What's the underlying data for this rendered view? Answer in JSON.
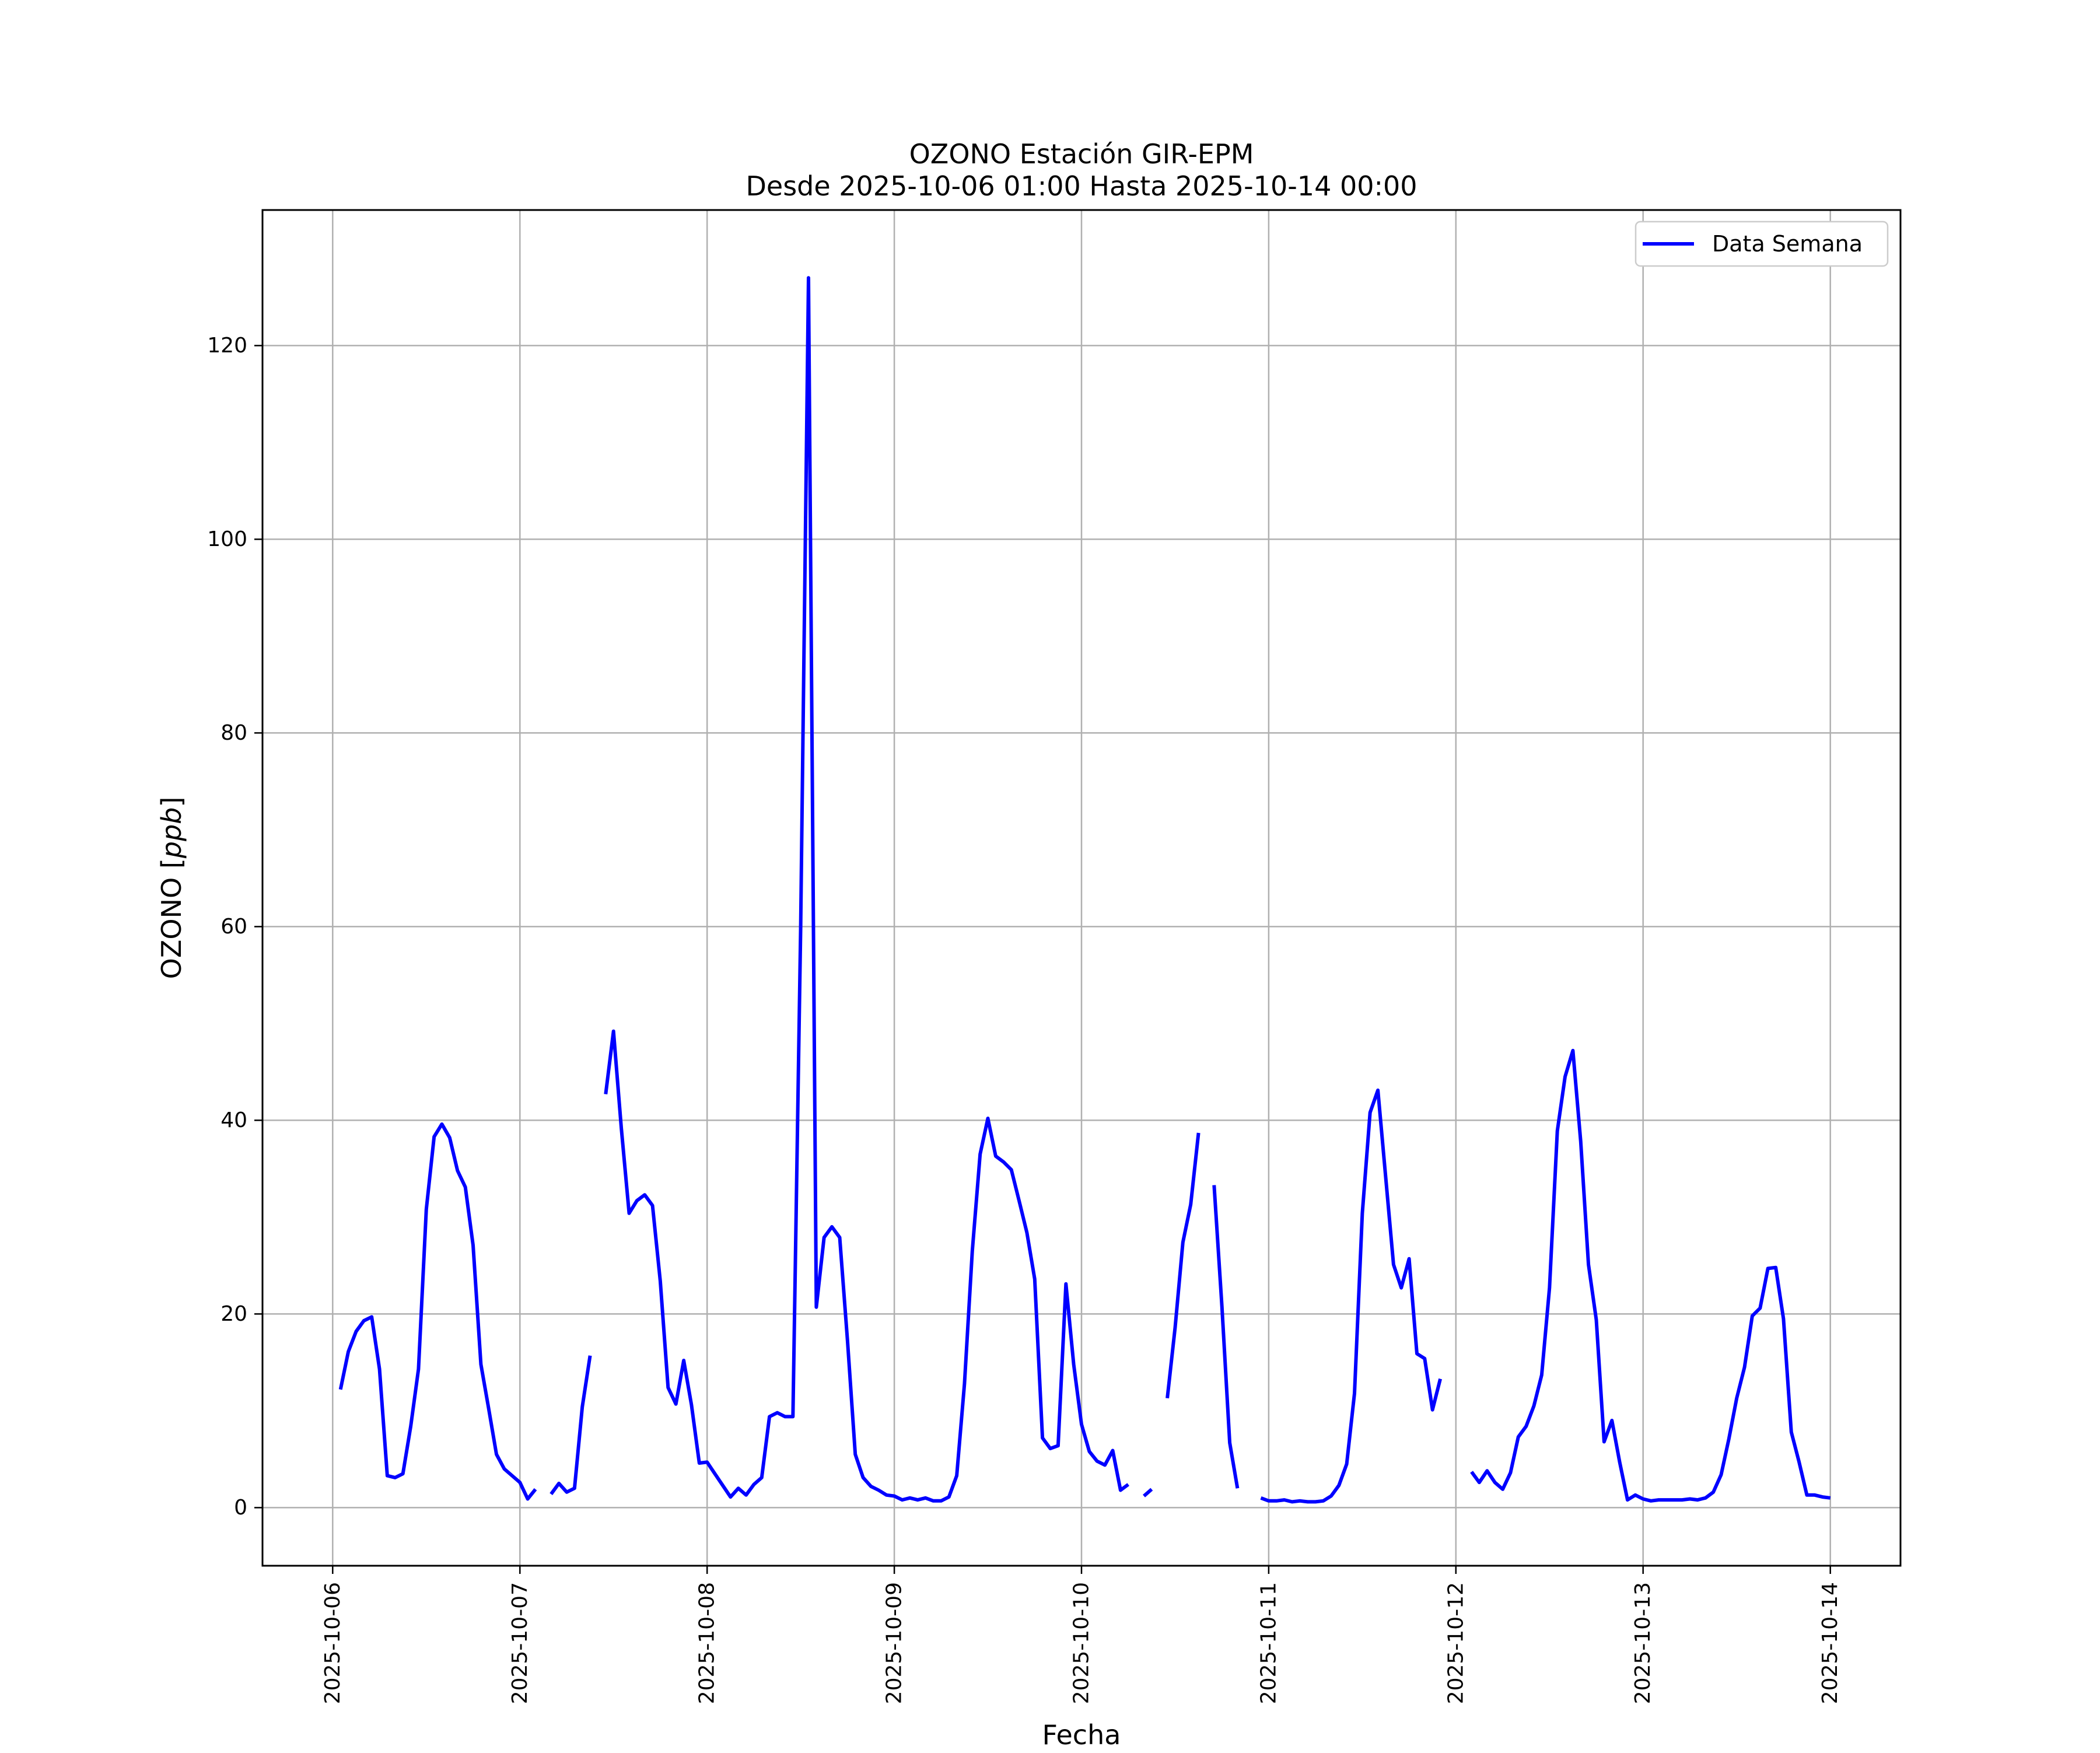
{
  "chart_data": {
    "type": "line",
    "title": "OZONO Estación GIR-EPM",
    "subtitle": "Desde 2025-10-06 01:00 Hasta 2025-10-14 00:00",
    "xlabel": "Fecha",
    "ylabel": "OZONO [ppb]",
    "ylabel_plain": "OZONO [",
    "ylabel_italic": "ppb",
    "ylabel_close": "]",
    "xlim": [
      "2025-10-05 15:00",
      "2025-10-14 09:00"
    ],
    "ylim": [
      -6,
      134
    ],
    "yticks": [
      0,
      20,
      40,
      60,
      80,
      100,
      120
    ],
    "xticks": [
      "2025-10-06",
      "2025-10-07",
      "2025-10-08",
      "2025-10-09",
      "2025-10-10",
      "2025-10-11",
      "2025-10-12",
      "2025-10-13",
      "2025-10-14"
    ],
    "grid": true,
    "legend_position": "top-right",
    "color": "#0000ff",
    "series": [
      {
        "name": "Data Semana",
        "segments": [
          [
            [
              "2025-10-06 01:00",
              12.2
            ],
            [
              "2025-10-06 02:00",
              16.1
            ],
            [
              "2025-10-06 03:00",
              18.2
            ],
            [
              "2025-10-06 04:00",
              19.3
            ],
            [
              "2025-10-06 05:00",
              19.7
            ],
            [
              "2025-10-06 06:00",
              14.3
            ],
            [
              "2025-10-06 07:00",
              3.3
            ],
            [
              "2025-10-06 08:00",
              3.1
            ],
            [
              "2025-10-06 09:00",
              3.5
            ],
            [
              "2025-10-06 10:00",
              8.4
            ],
            [
              "2025-10-06 11:00",
              14.3
            ],
            [
              "2025-10-06 12:00",
              30.8
            ],
            [
              "2025-10-06 13:00",
              38.3
            ],
            [
              "2025-10-06 14:00",
              39.6
            ],
            [
              "2025-10-06 15:00",
              38.2
            ],
            [
              "2025-10-06 16:00",
              34.8
            ],
            [
              "2025-10-06 17:00",
              33.1
            ],
            [
              "2025-10-06 18:00",
              27.1
            ],
            [
              "2025-10-06 19:00",
              14.8
            ],
            [
              "2025-10-06 20:00",
              10.2
            ],
            [
              "2025-10-06 21:00",
              5.5
            ],
            [
              "2025-10-06 22:00",
              4.0
            ],
            [
              "2025-10-06 23:00",
              3.3
            ],
            [
              "2025-10-07 00:00",
              2.6
            ],
            [
              "2025-10-07 01:00",
              0.9
            ],
            [
              "2025-10-07 02:00",
              1.9
            ]
          ],
          [
            [
              "2025-10-07 04:00",
              1.4
            ],
            [
              "2025-10-07 05:00",
              2.5
            ],
            [
              "2025-10-07 06:00",
              1.6
            ],
            [
              "2025-10-07 07:00",
              2.0
            ],
            [
              "2025-10-07 08:00",
              10.4
            ],
            [
              "2025-10-07 09:00",
              15.7
            ]
          ],
          [
            [
              "2025-10-07 11:00",
              42.7
            ],
            [
              "2025-10-07 12:00",
              49.2
            ],
            [
              "2025-10-07 13:00",
              39.2
            ],
            [
              "2025-10-07 14:00",
              30.4
            ],
            [
              "2025-10-07 15:00",
              31.7
            ],
            [
              "2025-10-07 16:00",
              32.3
            ],
            [
              "2025-10-07 17:00",
              31.2
            ],
            [
              "2025-10-07 18:00",
              23.4
            ],
            [
              "2025-10-07 19:00",
              12.4
            ],
            [
              "2025-10-07 20:00",
              10.7
            ],
            [
              "2025-10-07 21:00",
              15.2
            ],
            [
              "2025-10-07 22:00",
              10.6
            ],
            [
              "2025-10-07 23:00",
              4.6
            ],
            [
              "2025-10-08 00:00",
              4.7
            ],
            [
              "2025-10-08 01:00",
              3.5
            ],
            [
              "2025-10-08 02:00",
              2.3
            ],
            [
              "2025-10-08 03:00",
              1.1
            ],
            [
              "2025-10-08 04:00",
              2.0
            ],
            [
              "2025-10-08 05:00",
              1.3
            ],
            [
              "2025-10-08 06:00",
              2.4
            ],
            [
              "2025-10-08 07:00",
              3.1
            ],
            [
              "2025-10-08 08:00",
              9.4
            ],
            [
              "2025-10-08 09:00",
              9.8
            ],
            [
              "2025-10-08 10:00",
              9.4
            ],
            [
              "2025-10-08 11:00",
              9.4
            ],
            [
              "2025-10-08 12:00",
              60.0
            ],
            [
              "2025-10-08 13:00",
              127.0
            ],
            [
              "2025-10-08 14:00",
              20.7
            ],
            [
              "2025-10-08 15:00",
              27.9
            ],
            [
              "2025-10-08 16:00",
              29.0
            ],
            [
              "2025-10-08 17:00",
              27.9
            ],
            [
              "2025-10-08 18:00",
              17.2
            ],
            [
              "2025-10-08 19:00",
              5.5
            ],
            [
              "2025-10-08 20:00",
              3.1
            ],
            [
              "2025-10-08 21:00",
              2.2
            ],
            [
              "2025-10-08 22:00",
              1.8
            ],
            [
              "2025-10-08 23:00",
              1.3
            ],
            [
              "2025-10-09 00:00",
              1.2
            ],
            [
              "2025-10-09 01:00",
              0.8
            ],
            [
              "2025-10-09 02:00",
              1.0
            ],
            [
              "2025-10-09 03:00",
              0.8
            ],
            [
              "2025-10-09 04:00",
              1.0
            ],
            [
              "2025-10-09 05:00",
              0.7
            ],
            [
              "2025-10-09 06:00",
              0.7
            ],
            [
              "2025-10-09 07:00",
              1.1
            ],
            [
              "2025-10-09 08:00",
              3.3
            ],
            [
              "2025-10-09 09:00",
              12.8
            ],
            [
              "2025-10-09 10:00",
              26.5
            ],
            [
              "2025-10-09 11:00",
              36.5
            ],
            [
              "2025-10-09 12:00",
              40.2
            ],
            [
              "2025-10-09 13:00",
              36.3
            ],
            [
              "2025-10-09 14:00",
              35.7
            ],
            [
              "2025-10-09 15:00",
              34.9
            ],
            [
              "2025-10-09 16:00",
              31.7
            ],
            [
              "2025-10-09 17:00",
              28.4
            ],
            [
              "2025-10-09 18:00",
              23.6
            ],
            [
              "2025-10-09 19:00",
              7.2
            ],
            [
              "2025-10-09 20:00",
              6.1
            ],
            [
              "2025-10-09 21:00",
              6.4
            ],
            [
              "2025-10-09 22:00",
              23.1
            ],
            [
              "2025-10-09 23:00",
              14.8
            ],
            [
              "2025-10-10 00:00",
              8.6
            ],
            [
              "2025-10-10 01:00",
              5.8
            ],
            [
              "2025-10-10 02:00",
              4.8
            ],
            [
              "2025-10-10 03:00",
              4.4
            ],
            [
              "2025-10-10 04:00",
              5.9
            ],
            [
              "2025-10-10 05:00",
              1.8
            ],
            [
              "2025-10-10 06:00",
              2.4
            ]
          ],
          [
            [
              "2025-10-10 08:00",
              1.2
            ],
            [
              "2025-10-10 09:00",
              1.9
            ]
          ],
          [
            [
              "2025-10-10 11:00",
              11.3
            ],
            [
              "2025-10-10 12:00",
              18.6
            ],
            [
              "2025-10-10 13:00",
              27.4
            ],
            [
              "2025-10-10 14:00",
              31.3
            ],
            [
              "2025-10-10 15:00",
              38.7
            ]
          ],
          [
            [
              "2025-10-10 17:00",
              33.3
            ],
            [
              "2025-10-10 18:00",
              20.8
            ],
            [
              "2025-10-10 19:00",
              6.7
            ],
            [
              "2025-10-10 20:00",
              2.0
            ]
          ],
          [
            [
              "2025-10-10 23:00",
              1.0
            ],
            [
              "2025-10-11 00:00",
              0.7
            ],
            [
              "2025-10-11 01:00",
              0.7
            ],
            [
              "2025-10-11 02:00",
              0.8
            ],
            [
              "2025-10-11 03:00",
              0.6
            ],
            [
              "2025-10-11 04:00",
              0.7
            ],
            [
              "2025-10-11 05:00",
              0.6
            ],
            [
              "2025-10-11 06:00",
              0.6
            ],
            [
              "2025-10-11 07:00",
              0.7
            ],
            [
              "2025-10-11 08:00",
              1.2
            ],
            [
              "2025-10-11 09:00",
              2.3
            ],
            [
              "2025-10-11 10:00",
              4.5
            ],
            [
              "2025-10-11 11:00",
              11.8
            ],
            [
              "2025-10-11 12:00",
              30.4
            ],
            [
              "2025-10-11 13:00",
              40.8
            ],
            [
              "2025-10-11 14:00",
              43.1
            ],
            [
              "2025-10-11 15:00",
              34.1
            ],
            [
              "2025-10-11 16:00",
              25.1
            ],
            [
              "2025-10-11 17:00",
              22.7
            ],
            [
              "2025-10-11 18:00",
              25.7
            ],
            [
              "2025-10-11 19:00",
              15.9
            ],
            [
              "2025-10-11 20:00",
              15.4
            ],
            [
              "2025-10-11 21:00",
              10.1
            ],
            [
              "2025-10-11 22:00",
              13.3
            ]
          ],
          [
            [
              "2025-10-12 02:00",
              3.7
            ],
            [
              "2025-10-12 03:00",
              2.6
            ],
            [
              "2025-10-12 04:00",
              3.8
            ],
            [
              "2025-10-12 05:00",
              2.6
            ],
            [
              "2025-10-12 06:00",
              1.9
            ],
            [
              "2025-10-12 07:00",
              3.6
            ],
            [
              "2025-10-12 08:00",
              7.3
            ],
            [
              "2025-10-12 09:00",
              8.4
            ],
            [
              "2025-10-12 10:00",
              10.5
            ],
            [
              "2025-10-12 11:00",
              13.7
            ],
            [
              "2025-10-12 12:00",
              22.7
            ],
            [
              "2025-10-12 13:00",
              38.9
            ],
            [
              "2025-10-12 14:00",
              44.5
            ],
            [
              "2025-10-12 15:00",
              47.2
            ],
            [
              "2025-10-12 16:00",
              37.8
            ],
            [
              "2025-10-12 17:00",
              25.1
            ],
            [
              "2025-10-12 18:00",
              19.4
            ],
            [
              "2025-10-12 19:00",
              6.8
            ],
            [
              "2025-10-12 20:00",
              9.0
            ],
            [
              "2025-10-12 21:00",
              4.7
            ],
            [
              "2025-10-12 22:00",
              0.8
            ],
            [
              "2025-10-12 23:00",
              1.3
            ],
            [
              "2025-10-13 00:00",
              0.9
            ],
            [
              "2025-10-13 01:00",
              0.7
            ],
            [
              "2025-10-13 02:00",
              0.8
            ],
            [
              "2025-10-13 03:00",
              0.8
            ],
            [
              "2025-10-13 04:00",
              0.8
            ],
            [
              "2025-10-13 05:00",
              0.8
            ],
            [
              "2025-10-13 06:00",
              0.9
            ],
            [
              "2025-10-13 07:00",
              0.8
            ],
            [
              "2025-10-13 08:00",
              1.0
            ],
            [
              "2025-10-13 09:00",
              1.6
            ],
            [
              "2025-10-13 10:00",
              3.4
            ],
            [
              "2025-10-13 11:00",
              7.1
            ],
            [
              "2025-10-13 12:00",
              11.3
            ],
            [
              "2025-10-13 13:00",
              14.5
            ],
            [
              "2025-10-13 14:00",
              19.8
            ],
            [
              "2025-10-13 15:00",
              20.6
            ],
            [
              "2025-10-13 16:00",
              24.7
            ],
            [
              "2025-10-13 17:00",
              24.8
            ],
            [
              "2025-10-13 18:00",
              19.5
            ],
            [
              "2025-10-13 19:00",
              7.8
            ],
            [
              "2025-10-13 20:00",
              4.7
            ],
            [
              "2025-10-13 21:00",
              1.3
            ],
            [
              "2025-10-13 22:00",
              1.3
            ],
            [
              "2025-10-13 23:00",
              1.1
            ],
            [
              "2025-10-14 00:00",
              1.0
            ]
          ]
        ]
      }
    ]
  }
}
